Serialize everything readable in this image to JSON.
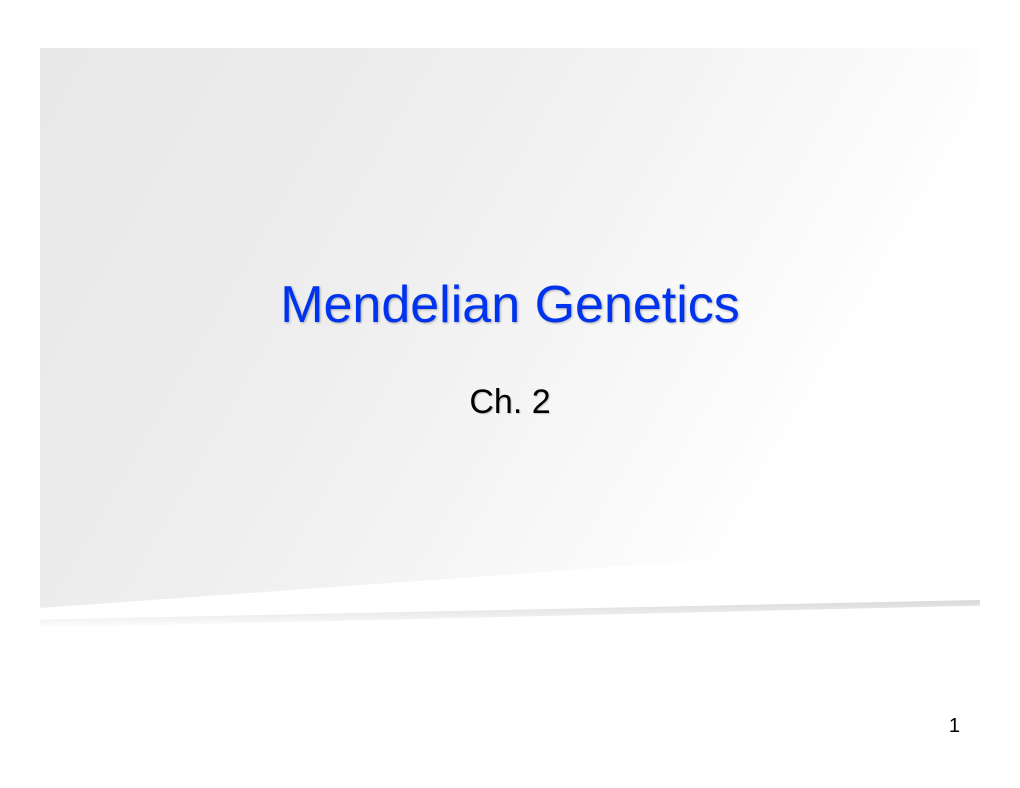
{
  "slide": {
    "title": "Mendelian Genetics",
    "subtitle": "Ch. 2",
    "page_number": "1",
    "title_color": "#0033ee",
    "subtitle_color": "#000000",
    "title_fontsize": 52,
    "subtitle_fontsize": 34,
    "background_gradient_start": "#e8e8e8",
    "background_gradient_end": "#ffffff",
    "page_number_color": "#000000"
  }
}
